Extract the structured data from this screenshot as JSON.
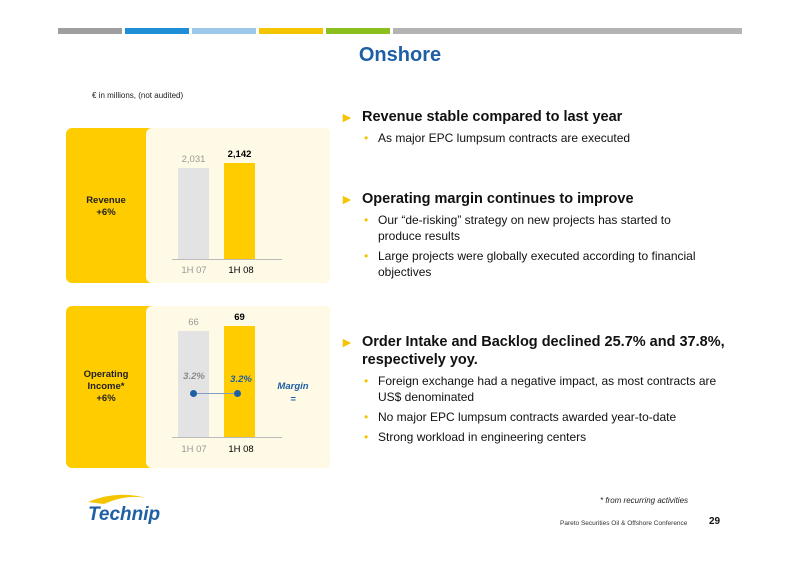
{
  "slide": {
    "title": "Onshore",
    "unit_note": "€ in millions, (not audited)",
    "footnote": "* from recurring activities",
    "conference": "Pareto Securities Oil & Offshore Conference",
    "page_number": "29",
    "logo_text": "Technip",
    "stripe_colors": [
      "#9e9e9e",
      "#1e8fd6",
      "#9cc8ea",
      "#f5c400",
      "#8bbf1f",
      "#b3b3b3"
    ]
  },
  "revenue_panel": {
    "label_line1": "Revenue",
    "label_line2": "+6%"
  },
  "operating_panel": {
    "label_line1": "Operating",
    "label_line2": "Income*",
    "label_line3": "+6%",
    "margin_word": "Margin",
    "margin_symbol": "="
  },
  "chart_data": [
    {
      "type": "bar",
      "categories": [
        "1H 07",
        "1H 08"
      ],
      "values": [
        2031,
        2142
      ],
      "value_labels": [
        "2,031",
        "2,142"
      ],
      "title": "Revenue",
      "title_note": "+6%",
      "ylim": [
        0,
        2142
      ],
      "colors": [
        "#e3e3e3",
        "#ffcc00"
      ]
    },
    {
      "type": "bar",
      "categories": [
        "1H 07",
        "1H 08"
      ],
      "values": [
        66,
        69
      ],
      "value_labels": [
        "66",
        "69"
      ],
      "margin_labels": [
        "3.2%",
        "3.2%"
      ],
      "margin_values": [
        3.2,
        3.2
      ],
      "title": "Operating Income*",
      "title_note": "+6%",
      "ylim": [
        0,
        69
      ],
      "colors": [
        "#e3e3e3",
        "#ffcc00"
      ]
    }
  ],
  "sections": [
    {
      "arrow": "►",
      "heading": "Revenue stable compared to last year",
      "bullets": [
        "As major EPC lumpsum contracts are executed"
      ]
    },
    {
      "arrow": "►",
      "heading": "Operating margin continues to improve",
      "bullets": [
        "Our “de-risking” strategy on new projects has started to produce results",
        "Large projects were globally executed according to financial objectives"
      ]
    },
    {
      "arrow": "►",
      "heading": "Order Intake and Backlog declined 25.7% and 37.8%, respectively yoy.",
      "bullets": [
        "Foreign exchange had a negative impact, as most contracts are US$ denominated",
        "No major EPC lumpsum contracts awarded year-to-date",
        "Strong workload in engineering centers"
      ]
    }
  ],
  "bullet_glyph": "•"
}
